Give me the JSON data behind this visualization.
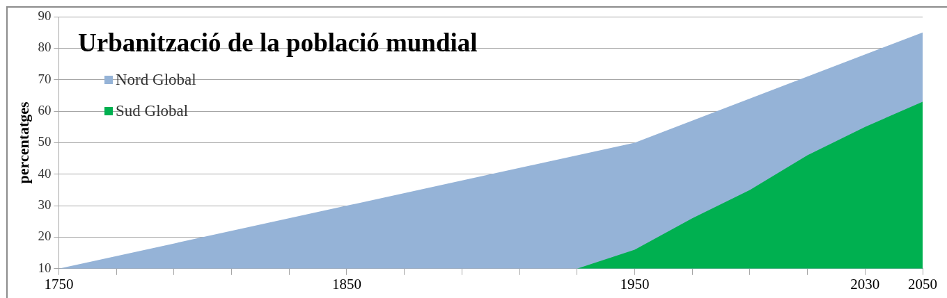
{
  "chart_data": {
    "type": "area",
    "title": "Urbanització de la població mundial",
    "ylabel": "percentatges",
    "series": [
      {
        "name": "Nord Global",
        "color": "#95b3d7",
        "x": [
          1750,
          1850,
          1950,
          2050
        ],
        "values": [
          10,
          30,
          50,
          85
        ]
      },
      {
        "name": "Sud Global",
        "color": "#00b050",
        "x": [
          1930,
          1950,
          1970,
          1990,
          2010,
          2030,
          2050
        ],
        "values": [
          10,
          16,
          26,
          35,
          46,
          55,
          63
        ]
      }
    ],
    "xlim": [
      1750,
      2050
    ],
    "xticks": [
      1750,
      {
        "value": 1770,
        "label": null
      },
      {
        "value": 1790,
        "label": null
      },
      {
        "value": 1810,
        "label": null
      },
      {
        "value": 1830,
        "label": null
      },
      1850,
      {
        "value": 1870,
        "label": null
      },
      {
        "value": 1890,
        "label": null
      },
      {
        "value": 1910,
        "label": null
      },
      {
        "value": 1930,
        "label": null
      },
      1950,
      {
        "value": 1970,
        "label": null
      },
      {
        "value": 1990,
        "label": null
      },
      {
        "value": 2010,
        "label": null
      },
      2030,
      2050
    ],
    "ylim": [
      10,
      90
    ],
    "yticks": [
      10,
      20,
      30,
      40,
      50,
      60,
      70,
      80,
      90
    ],
    "grid": "y",
    "legend": "top left"
  }
}
